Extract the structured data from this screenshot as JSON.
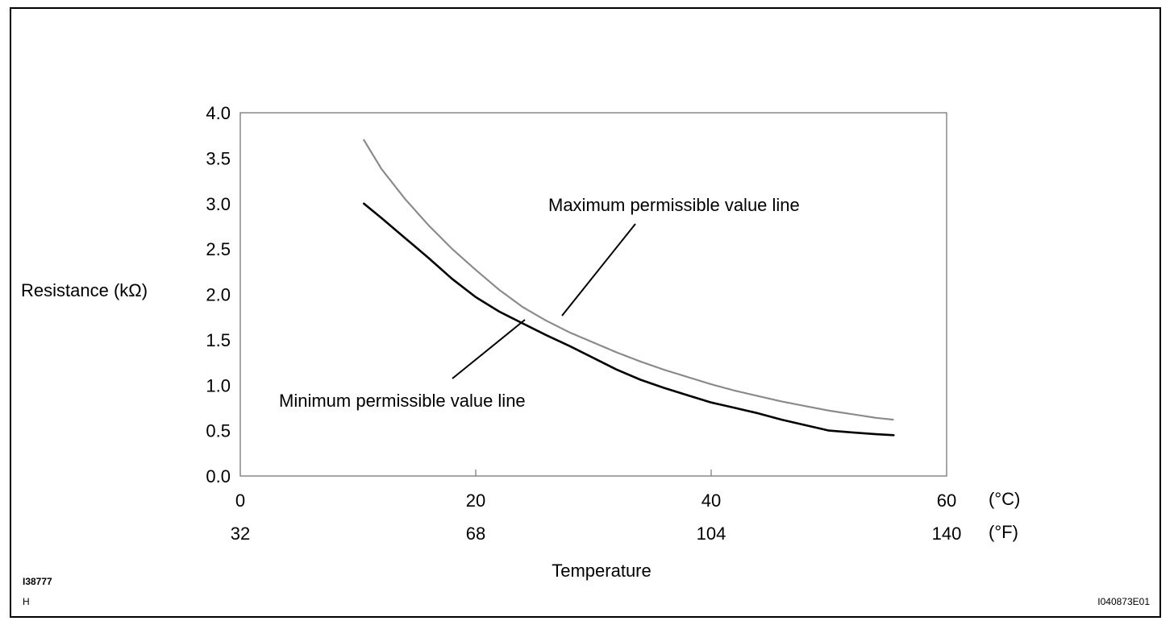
{
  "chart_data": {
    "type": "line",
    "ylabel": "Resistance (kΩ)",
    "xlabel": "Temperature",
    "xlim": [
      0,
      60
    ],
    "ylim": [
      0.0,
      4.0
    ],
    "y_ticks": [
      "0.0",
      "0.5",
      "1.0",
      "1.5",
      "2.0",
      "2.5",
      "3.0",
      "3.5",
      "4.0"
    ],
    "x_ticks_c": [
      {
        "value": 0,
        "label": "0"
      },
      {
        "value": 20,
        "label": "20"
      },
      {
        "value": 40,
        "label": "40"
      },
      {
        "value": 60,
        "label": "60"
      }
    ],
    "x_ticks_f": [
      {
        "value": 0,
        "label": "32"
      },
      {
        "value": 20,
        "label": "68"
      },
      {
        "value": 40,
        "label": "104"
      },
      {
        "value": 60,
        "label": "140"
      }
    ],
    "unit_c": "(°C)",
    "unit_f": "(°F)",
    "grid": false,
    "series": [
      {
        "name": "Maximum permissible value line",
        "color": "#8a8a8a",
        "x": [
          10.5,
          12,
          14,
          16,
          18,
          20,
          22,
          24,
          26,
          28,
          30,
          32,
          34,
          36,
          38,
          40,
          42,
          44,
          46,
          48,
          50,
          52,
          54,
          55.5
        ],
        "y": [
          3.7,
          3.38,
          3.05,
          2.76,
          2.5,
          2.27,
          2.05,
          1.86,
          1.71,
          1.58,
          1.47,
          1.36,
          1.26,
          1.17,
          1.09,
          1.01,
          0.94,
          0.88,
          0.82,
          0.77,
          0.72,
          0.68,
          0.64,
          0.62
        ]
      },
      {
        "name": "Minimum permissible value line",
        "color": "#000000",
        "x": [
          10.5,
          12,
          14,
          16,
          18,
          20,
          22,
          24,
          26,
          28,
          30,
          32,
          34,
          36,
          38,
          40,
          42,
          44,
          46,
          48,
          50,
          52,
          54,
          55.5
        ],
        "y": [
          3.0,
          2.84,
          2.62,
          2.4,
          2.17,
          1.97,
          1.81,
          1.68,
          1.55,
          1.43,
          1.3,
          1.17,
          1.06,
          0.97,
          0.89,
          0.81,
          0.75,
          0.69,
          0.62,
          0.56,
          0.5,
          0.48,
          0.46,
          0.45
        ]
      }
    ],
    "annotations": [
      {
        "text": "Maximum permissible value line",
        "target_series": 0
      },
      {
        "text": "Minimum permissible value line",
        "target_series": 1
      }
    ]
  },
  "figure_codes": {
    "left_top": "I38777",
    "left_bottom": "H",
    "right_bottom": "I040873E01"
  }
}
